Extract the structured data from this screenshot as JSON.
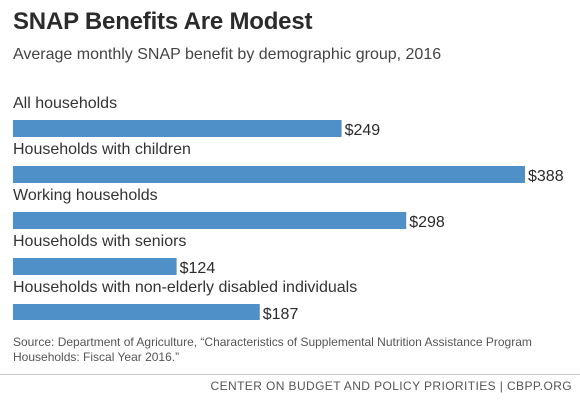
{
  "title": "SNAP Benefits Are Modest",
  "subtitle": "Average monthly SNAP benefit by demographic group, 2016",
  "chart_data": {
    "type": "bar",
    "orientation": "horizontal",
    "categories": [
      "All households",
      "Households with children",
      "Working households",
      "Households with seniors",
      "Households with non-elderly disabled individuals"
    ],
    "values": [
      249,
      388,
      298,
      124,
      187
    ],
    "value_labels": [
      "$249",
      "$388",
      "$298",
      "$124",
      "$187"
    ],
    "xlim": [
      0,
      388
    ],
    "grid": false,
    "bar_color": "#4f90c8"
  },
  "source": "Source: Department of Agriculture, “Characteristics of Supplemental Nutrition Assistance Program Households: Fiscal Year 2016.”",
  "footer": "CENTER ON BUDGET AND POLICY PRIORITIES | CBPP.ORG"
}
